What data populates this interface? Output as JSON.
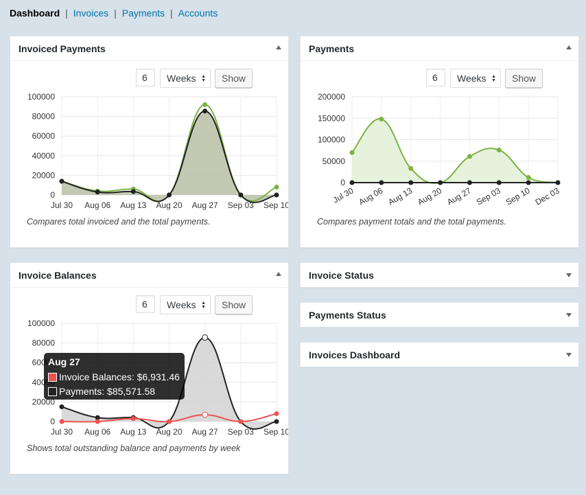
{
  "nav": {
    "current": "Dashboard",
    "links": [
      "Invoices",
      "Payments",
      "Accounts"
    ],
    "separator": "|"
  },
  "panels": {
    "invoiced_payments": {
      "title": "Invoiced Payments",
      "period_value": "6",
      "period_unit": "Weeks",
      "show_label": "Show",
      "caption": "Compares total invoiced and the total payments."
    },
    "payments": {
      "title": "Payments",
      "period_value": "6",
      "period_unit": "Weeks",
      "show_label": "Show",
      "caption": "Compares payment totals and the total payments."
    },
    "invoice_balances": {
      "title": "Invoice Balances",
      "period_value": "6",
      "period_unit": "Weeks",
      "show_label": "Show",
      "caption": "Shows total outstanding balance and payments by week",
      "tooltip": {
        "title": "Aug 27",
        "rows": [
          "Invoice Balances: $6,931.46",
          "Payments: $85,571.58"
        ]
      }
    },
    "invoice_status": {
      "title": "Invoice Status"
    },
    "payments_status": {
      "title": "Payments Status"
    },
    "invoices_dashboard": {
      "title": "Invoices Dashboard"
    }
  },
  "colors": {
    "green": "#7cb342",
    "dark": "#222222",
    "red": "#f05050",
    "link": "#0073aa"
  },
  "chart_data": [
    {
      "id": "invoiced_payments",
      "type": "area",
      "categories": [
        "Jul 30",
        "Aug 06",
        "Aug 13",
        "Aug 20",
        "Aug 27",
        "Sep 03",
        "Sep 10"
      ],
      "ylim": [
        0,
        100000
      ],
      "yticks": [
        "0",
        "20000",
        "40000",
        "60000",
        "80000",
        "100000"
      ],
      "grid": true,
      "series": [
        {
          "values": [
            14000,
            4000,
            6000,
            0,
            92000,
            0,
            8000
          ],
          "color": "#7cb342",
          "fill": "none"
        },
        {
          "values": [
            14000,
            3000,
            3500,
            0,
            85500,
            0,
            0
          ],
          "color": "#222222",
          "fill": "#b8bfa6"
        }
      ]
    },
    {
      "id": "payments",
      "type": "area",
      "categories": [
        "Jul 30",
        "Aug 06",
        "Aug 13",
        "Aug 20",
        "Aug 27",
        "Sep 03",
        "Sep 10",
        "Dec 03"
      ],
      "ylim": [
        0,
        200000
      ],
      "yticks": [
        "0",
        "50000",
        "100000",
        "150000",
        "200000"
      ],
      "grid": true,
      "rotated_labels": true,
      "series": [
        {
          "values": [
            70000,
            148000,
            33000,
            0,
            61000,
            76000,
            12000,
            0
          ],
          "color": "#7cb342",
          "fill": "#e2f0d5"
        },
        {
          "values": [
            0,
            0,
            0,
            0,
            0,
            0,
            0,
            0
          ],
          "color": "#222222",
          "fill": "none"
        }
      ]
    },
    {
      "id": "invoice_balances",
      "type": "area",
      "categories": [
        "Jul 30",
        "Aug 06",
        "Aug 13",
        "Aug 20",
        "Aug 27",
        "Sep 03",
        "Sep 10"
      ],
      "ylim": [
        0,
        100000
      ],
      "yticks": [
        "0",
        "20000",
        "40000",
        "60000",
        "80000",
        "100000"
      ],
      "grid": true,
      "series": [
        {
          "values": [
            15000,
            4000,
            4000,
            0,
            85571.58,
            0,
            0
          ],
          "color": "#222222",
          "fill": "#d2d2d2"
        },
        {
          "values": [
            0,
            0,
            3000,
            0,
            6931.46,
            0,
            8000
          ],
          "color": "#f05050",
          "fill": "none"
        }
      ]
    }
  ]
}
